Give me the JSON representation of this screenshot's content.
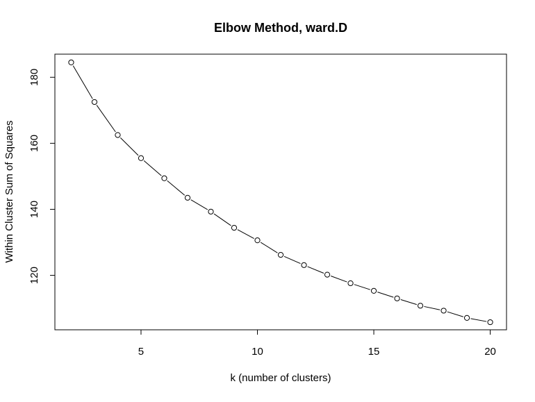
{
  "chart_data": {
    "type": "line",
    "title": "Elbow Method, ward.D",
    "xlabel": "k (number of clusters)",
    "ylabel": "Within Cluster Sum of Squares",
    "xlim": [
      1.3,
      20.7
    ],
    "ylim": [
      103.5,
      187
    ],
    "x_ticks": [
      5,
      10,
      15,
      20
    ],
    "y_ticks": [
      120,
      140,
      160,
      180
    ],
    "x_tick_labels": [
      "5",
      "10",
      "15",
      "20"
    ],
    "y_tick_labels": [
      "120",
      "140",
      "160",
      "180"
    ],
    "grid": false,
    "legend": "none",
    "marker": "open-circle",
    "line_color": "#000000",
    "series": [
      {
        "x": [
          2,
          3,
          4,
          5,
          6,
          7,
          8,
          9,
          10,
          11,
          12,
          13,
          14,
          15,
          16,
          17,
          18,
          19,
          20
        ],
        "values": [
          184.5,
          172.5,
          162.5,
          155.5,
          149.4,
          143.5,
          139.3,
          134.4,
          130.6,
          126.2,
          123.1,
          120.2,
          117.6,
          115.3,
          113.0,
          110.8,
          109.3,
          107.1,
          105.8
        ]
      }
    ]
  }
}
